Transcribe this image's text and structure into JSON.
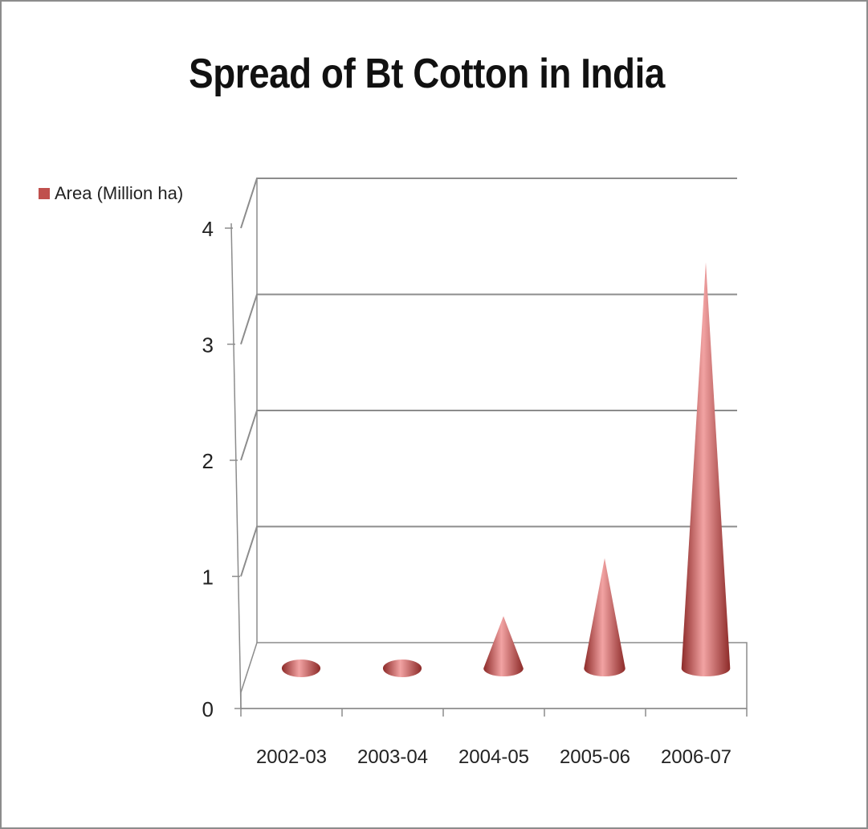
{
  "chart_data": {
    "type": "bar",
    "shape": "cone-3d",
    "title": "Spread of Bt Cotton in India",
    "categories": [
      "2002-03",
      "2003-04",
      "2004-05",
      "2005-06",
      "2006-07"
    ],
    "series": [
      {
        "name": "Area (Million ha)",
        "values": [
          0.03,
          0.03,
          0.45,
          0.95,
          3.5
        ]
      }
    ],
    "y_ticks": [
      "0",
      "1",
      "2",
      "3",
      "4"
    ],
    "ylim": [
      0,
      4
    ],
    "grid": true,
    "legend_position": "top-left",
    "xlabel": "",
    "ylabel": "",
    "colors": {
      "series": "#c0504d",
      "series_light": "#f2a3a3",
      "series_dark": "#8c2a28",
      "grid": "#8c8c8c"
    }
  }
}
